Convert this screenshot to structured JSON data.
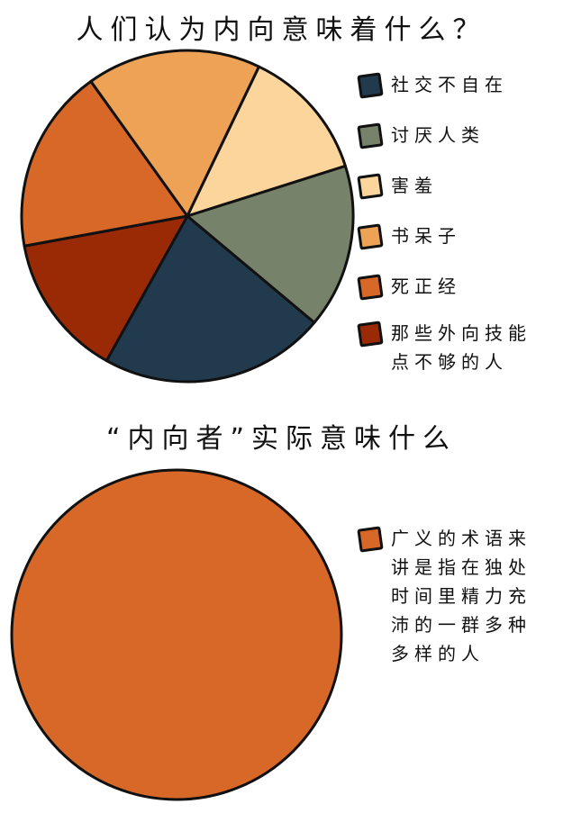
{
  "chart_data": [
    {
      "type": "pie",
      "title": "人们认为内向意味着什么？",
      "slices": [
        {
          "label": "社交不自在",
          "value": 22,
          "color": "#213a4e"
        },
        {
          "label": "讨厌人类",
          "value": 16,
          "color": "#77826b"
        },
        {
          "label": "害羞",
          "value": 13,
          "color": "#fbd59c"
        },
        {
          "label": "书呆子",
          "value": 17,
          "color": "#eda256"
        },
        {
          "label": "死正经",
          "value": 18,
          "color": "#d86828"
        },
        {
          "label": "那些外向技能点不够的人",
          "value": 14,
          "color": "#9a2a05"
        }
      ]
    },
    {
      "type": "pie",
      "title": "“内向者”实际意味什么",
      "slices": [
        {
          "label": "广义的术语来讲是指在独处时间里精力充沛的一群多种多样的人",
          "value": 100,
          "color": "#d86828"
        }
      ]
    }
  ]
}
